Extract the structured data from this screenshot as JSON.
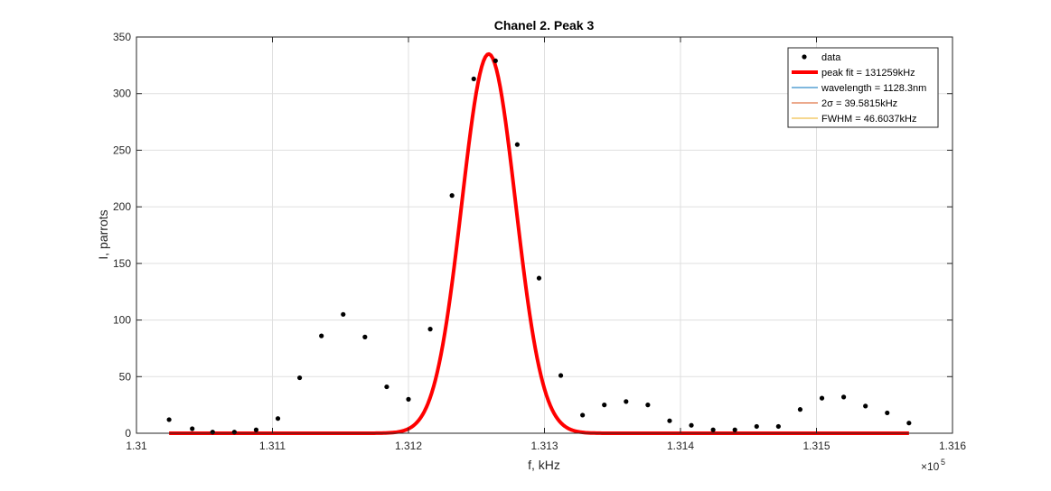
{
  "chart_data": {
    "type": "scatter",
    "title": "Chanel 2. Peak 3",
    "xlabel": "f, kHz",
    "ylabel": "I, parrots",
    "x_exponent_label": "×10",
    "x_exponent_power": "5",
    "xlim": [
      1.31,
      1.316
    ],
    "ylim": [
      0,
      350
    ],
    "x_scale_factor": 100000,
    "grid": true,
    "xticks": [
      1.31,
      1.311,
      1.312,
      1.313,
      1.314,
      1.315,
      1.316
    ],
    "xtick_labels": [
      "1.31",
      "1.311",
      "1.312",
      "1.313",
      "1.314",
      "1.315",
      "1.316"
    ],
    "yticks": [
      0,
      50,
      100,
      150,
      200,
      250,
      300,
      350
    ],
    "ytick_labels": [
      "0",
      "50",
      "100",
      "150",
      "200",
      "250",
      "300",
      "350"
    ],
    "legend_position": "top-right",
    "series": [
      {
        "name": "data",
        "kind": "markers",
        "color": "#000000",
        "x": [
          1.31024,
          1.31041,
          1.31056,
          1.31072,
          1.31088,
          1.31104,
          1.3112,
          1.31136,
          1.31152,
          1.31168,
          1.31184,
          1.312,
          1.31216,
          1.31232,
          1.31248,
          1.31264,
          1.3128,
          1.31296,
          1.31312,
          1.31328,
          1.31344,
          1.3136,
          1.31376,
          1.31392,
          1.31408,
          1.31424,
          1.3144,
          1.31456,
          1.31472,
          1.31488,
          1.31504,
          1.3152,
          1.31536,
          1.31552,
          1.31568
        ],
        "y": [
          12,
          4,
          1,
          1,
          3,
          13,
          49,
          86,
          105,
          85,
          41,
          30,
          92,
          210,
          313,
          329,
          255,
          137,
          51,
          16,
          25,
          28,
          25,
          11,
          7,
          3,
          3,
          6,
          6,
          21,
          31,
          32,
          24,
          18,
          9
        ]
      },
      {
        "name": "peak fit = 131259kHz",
        "kind": "gaussian",
        "color": "#ff0000",
        "amplitude": 335,
        "center": 1.31259,
        "fwhm": 0.000466,
        "x_range": [
          1.31024,
          1.31568
        ]
      },
      {
        "name": "wavelength = 1128.3nm",
        "kind": "legend-only",
        "color": "#0072bd"
      },
      {
        "name": "2σ = 39.5815kHz",
        "kind": "legend-only",
        "color": "#d95319"
      },
      {
        "name": "FWHM = 46.6037kHz",
        "kind": "legend-only",
        "color": "#edb120"
      }
    ]
  }
}
